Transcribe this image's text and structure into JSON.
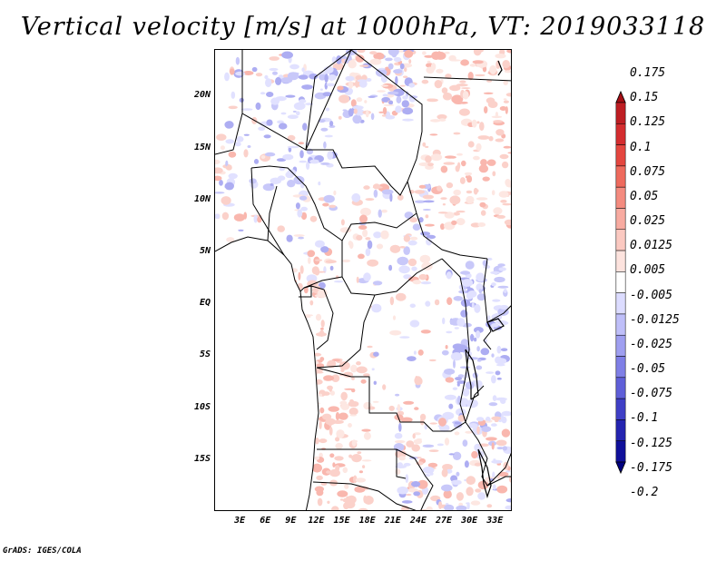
{
  "title": "Vertical velocity [m/s] at 1000hPa, VT: 2019033118",
  "footer": "GrADS: IGES/COLA",
  "map": {
    "lat_labels": [
      "20N",
      "15N",
      "10N",
      "5N",
      "EQ",
      "5S",
      "10S",
      "15S"
    ],
    "lon_labels": [
      "3E",
      "6E",
      "9E",
      "12E",
      "15E",
      "18E",
      "21E",
      "24E",
      "27E",
      "30E",
      "33E"
    ],
    "lat_range": [
      -20,
      24.5
    ],
    "lon_range": [
      0,
      35
    ]
  },
  "colorbar": {
    "labels": [
      "0.175",
      "0.15",
      "0.125",
      "0.1",
      "0.075",
      "0.05",
      "0.025",
      "0.0125",
      "0.005",
      "-0.005",
      "-0.0125",
      "-0.025",
      "-0.05",
      "-0.075",
      "-0.1",
      "-0.125",
      "-0.175",
      "-0.2"
    ],
    "colors": [
      "#a50f15",
      "#be1e23",
      "#d42d2f",
      "#e4463f",
      "#ee6a5d",
      "#f48b7f",
      "#f8aba1",
      "#fbc9c1",
      "#fde3de",
      "#ffffff",
      "#dcdcff",
      "#bfbff9",
      "#9f9ff0",
      "#7f7fe6",
      "#5f5fd8",
      "#3f3fc6",
      "#2424b0",
      "#10109a",
      "#000080"
    ]
  }
}
